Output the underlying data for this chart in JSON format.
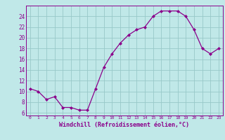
{
  "x": [
    0,
    1,
    2,
    3,
    4,
    5,
    6,
    7,
    8,
    9,
    10,
    11,
    12,
    13,
    14,
    15,
    16,
    17,
    18,
    19,
    20,
    21,
    22,
    23
  ],
  "y": [
    10.5,
    10.0,
    8.5,
    9.0,
    7.0,
    7.0,
    6.5,
    6.5,
    10.5,
    14.5,
    17.0,
    19.0,
    20.5,
    21.5,
    22.0,
    24.0,
    25.0,
    25.0,
    25.0,
    24.0,
    21.5,
    18.0,
    17.0,
    18.0
  ],
  "line_color": "#8B008B",
  "marker": "D",
  "marker_size": 2.0,
  "bg_color": "#c0e8e8",
  "grid_color": "#98c8c8",
  "xlabel": "Windchill (Refroidissement éolien,°C)",
  "xlim": [
    -0.5,
    23.5
  ],
  "ylim": [
    5.5,
    26.0
  ],
  "yticks": [
    6,
    8,
    10,
    12,
    14,
    16,
    18,
    20,
    22,
    24
  ],
  "xticks": [
    0,
    1,
    2,
    3,
    4,
    5,
    6,
    7,
    8,
    9,
    10,
    11,
    12,
    13,
    14,
    15,
    16,
    17,
    18,
    19,
    20,
    21,
    22,
    23
  ],
  "spine_color": "#8B008B",
  "tick_color": "#8B008B",
  "label_color": "#8B008B"
}
